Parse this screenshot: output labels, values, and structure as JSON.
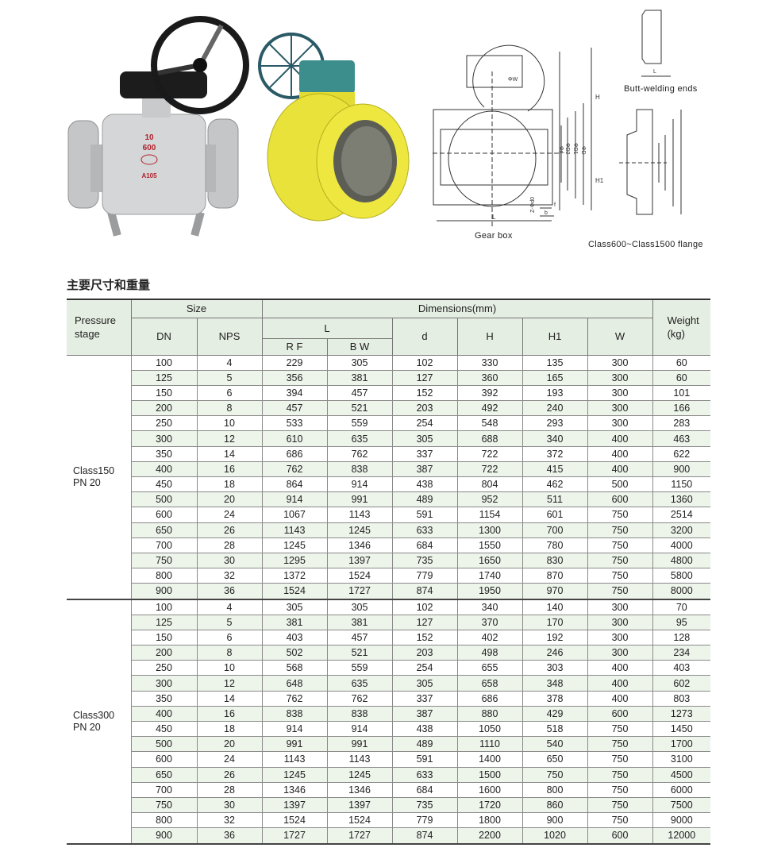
{
  "images": {
    "grey_valve_markings": [
      "10",
      "600",
      "DG",
      "A105"
    ],
    "gear_box_caption": "Gear box",
    "butt_welding_caption": "Butt-welding ends",
    "flange_caption": "Class600~Class1500 flange",
    "dimension_labels": {
      "H": "H",
      "H1": "H1",
      "L": "L",
      "W": "ΦW",
      "d": "Φd",
      "D2": "ΦD2",
      "D1": "ΦD1",
      "D": "ΦD",
      "z": "Z-Φd0",
      "b": "b",
      "f": "f"
    }
  },
  "section_title": "主要尺寸和重量",
  "table": {
    "headers": {
      "pressure_stage": [
        "Pressure",
        "stage"
      ],
      "size": "Size",
      "dimensions": "Dimensions(mm)",
      "dn": "DN",
      "nps": "NPS",
      "l": "L",
      "rf": "R F",
      "bw": "B W",
      "d": "d",
      "h": "H",
      "h1": "H1",
      "w": "W",
      "weight": [
        "Weight",
        "(kg)"
      ]
    },
    "groups": [
      {
        "stage": [
          "Class150",
          "PN 20"
        ],
        "rows": [
          [
            "100",
            "4",
            "229",
            "305",
            "102",
            "330",
            "135",
            "300",
            "60"
          ],
          [
            "125",
            "5",
            "356",
            "381",
            "127",
            "360",
            "165",
            "300",
            "60"
          ],
          [
            "150",
            "6",
            "394",
            "457",
            "152",
            "392",
            "193",
            "300",
            "101"
          ],
          [
            "200",
            "8",
            "457",
            "521",
            "203",
            "492",
            "240",
            "300",
            "166"
          ],
          [
            "250",
            "10",
            "533",
            "559",
            "254",
            "548",
            "293",
            "300",
            "283"
          ],
          [
            "300",
            "12",
            "610",
            "635",
            "305",
            "688",
            "340",
            "400",
            "463"
          ],
          [
            "350",
            "14",
            "686",
            "762",
            "337",
            "722",
            "372",
            "400",
            "622"
          ],
          [
            "400",
            "16",
            "762",
            "838",
            "387",
            "722",
            "415",
            "400",
            "900"
          ],
          [
            "450",
            "18",
            "864",
            "914",
            "438",
            "804",
            "462",
            "500",
            "1150"
          ],
          [
            "500",
            "20",
            "914",
            "991",
            "489",
            "952",
            "511",
            "600",
            "1360"
          ],
          [
            "600",
            "24",
            "1067",
            "1143",
            "591",
            "1154",
            "601",
            "750",
            "2514"
          ],
          [
            "650",
            "26",
            "1143",
            "1245",
            "633",
            "1300",
            "700",
            "750",
            "3200"
          ],
          [
            "700",
            "28",
            "1245",
            "1346",
            "684",
            "1550",
            "780",
            "750",
            "4000"
          ],
          [
            "750",
            "30",
            "1295",
            "1397",
            "735",
            "1650",
            "830",
            "750",
            "4800"
          ],
          [
            "800",
            "32",
            "1372",
            "1524",
            "779",
            "1740",
            "870",
            "750",
            "5800"
          ],
          [
            "900",
            "36",
            "1524",
            "1727",
            "874",
            "1950",
            "970",
            "750",
            "8000"
          ]
        ]
      },
      {
        "stage": [
          "Class300",
          "PN 20"
        ],
        "rows": [
          [
            "100",
            "4",
            "305",
            "305",
            "102",
            "340",
            "140",
            "300",
            "70"
          ],
          [
            "125",
            "5",
            "381",
            "381",
            "127",
            "370",
            "170",
            "300",
            "95"
          ],
          [
            "150",
            "6",
            "403",
            "457",
            "152",
            "402",
            "192",
            "300",
            "128"
          ],
          [
            "200",
            "8",
            "502",
            "521",
            "203",
            "498",
            "246",
            "300",
            "234"
          ],
          [
            "250",
            "10",
            "568",
            "559",
            "254",
            "655",
            "303",
            "400",
            "403"
          ],
          [
            "300",
            "12",
            "648",
            "635",
            "305",
            "658",
            "348",
            "400",
            "602"
          ],
          [
            "350",
            "14",
            "762",
            "762",
            "337",
            "686",
            "378",
            "400",
            "803"
          ],
          [
            "400",
            "16",
            "838",
            "838",
            "387",
            "880",
            "429",
            "600",
            "1273"
          ],
          [
            "450",
            "18",
            "914",
            "914",
            "438",
            "1050",
            "518",
            "750",
            "1450"
          ],
          [
            "500",
            "20",
            "991",
            "991",
            "489",
            "1110",
            "540",
            "750",
            "1700"
          ],
          [
            "600",
            "24",
            "1143",
            "1143",
            "591",
            "1400",
            "650",
            "750",
            "3100"
          ],
          [
            "650",
            "26",
            "1245",
            "1245",
            "633",
            "1500",
            "750",
            "750",
            "4500"
          ],
          [
            "700",
            "28",
            "1346",
            "1346",
            "684",
            "1600",
            "800",
            "750",
            "6000"
          ],
          [
            "750",
            "30",
            "1397",
            "1397",
            "735",
            "1720",
            "860",
            "750",
            "7500"
          ],
          [
            "800",
            "32",
            "1524",
            "1524",
            "779",
            "1800",
            "900",
            "750",
            "9000"
          ],
          [
            "900",
            "36",
            "1727",
            "1727",
            "874",
            "2200",
            "1020",
            "600",
            "12000"
          ]
        ]
      }
    ]
  },
  "colors": {
    "header_bg": "#e5eee2",
    "alt_row_bg": "#edf4ea",
    "valve_yellow": "#e8e23a",
    "valve_grey": "#c9cbcd",
    "gearbox_teal": "#3b8e8c",
    "marking_red": "#b0222a"
  }
}
